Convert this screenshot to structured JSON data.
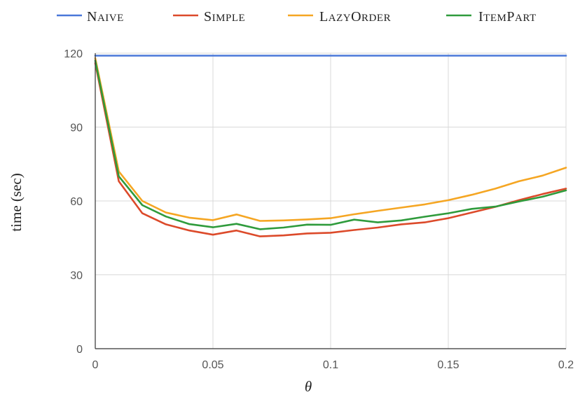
{
  "chart_data": {
    "type": "line",
    "title": "",
    "xlabel": "θ",
    "ylabel": "time (sec)",
    "xlim": [
      0,
      0.2
    ],
    "ylim": [
      0,
      120
    ],
    "x_ticks": [
      0,
      0.05,
      0.1,
      0.15,
      0.2
    ],
    "x_tick_labels": [
      "0",
      "0.05",
      "0.1",
      "0.15",
      "0.2"
    ],
    "y_ticks": [
      0,
      30,
      60,
      90,
      120
    ],
    "y_tick_labels": [
      "0",
      "30",
      "60",
      "90",
      "120"
    ],
    "grid": true,
    "legend_position": "top",
    "x": [
      0,
      0.01,
      0.02,
      0.03,
      0.04,
      0.05,
      0.06,
      0.07,
      0.08,
      0.09,
      0.1,
      0.11,
      0.12,
      0.13,
      0.14,
      0.15,
      0.16,
      0.17,
      0.18,
      0.19,
      0.2
    ],
    "series": [
      {
        "name": "NAIVE",
        "color": "#4a78d9",
        "values": [
          119,
          119,
          119,
          119,
          119,
          119,
          119,
          119,
          119,
          119,
          119,
          119,
          119,
          119,
          119,
          119,
          119,
          119,
          119,
          119,
          119
        ]
      },
      {
        "name": "SIMPLE",
        "color": "#dc4a2a",
        "values": [
          116,
          68,
          55,
          50.5,
          48,
          46.3,
          48,
          45.6,
          46,
          46.8,
          47.1,
          48.2,
          49.2,
          50.5,
          51.3,
          53,
          55.3,
          57.6,
          60.3,
          62.8,
          65
        ]
      },
      {
        "name": "LAZYORDER",
        "color": "#f5a623",
        "values": [
          118,
          72,
          60,
          55.3,
          53.2,
          52.2,
          54.5,
          51.9,
          52.1,
          52.5,
          53,
          54.6,
          56,
          57.3,
          58.6,
          60.3,
          62.5,
          65,
          68,
          70.3,
          73.5
        ]
      },
      {
        "name": "ITEMPART",
        "color": "#2f9b3c",
        "values": [
          117,
          70,
          58.3,
          53.7,
          50.6,
          49.3,
          50.7,
          48.5,
          49.2,
          50.4,
          50.3,
          52.4,
          51.3,
          52.1,
          53.6,
          55,
          56.8,
          57.7,
          59.8,
          61.7,
          64.3
        ]
      }
    ]
  }
}
